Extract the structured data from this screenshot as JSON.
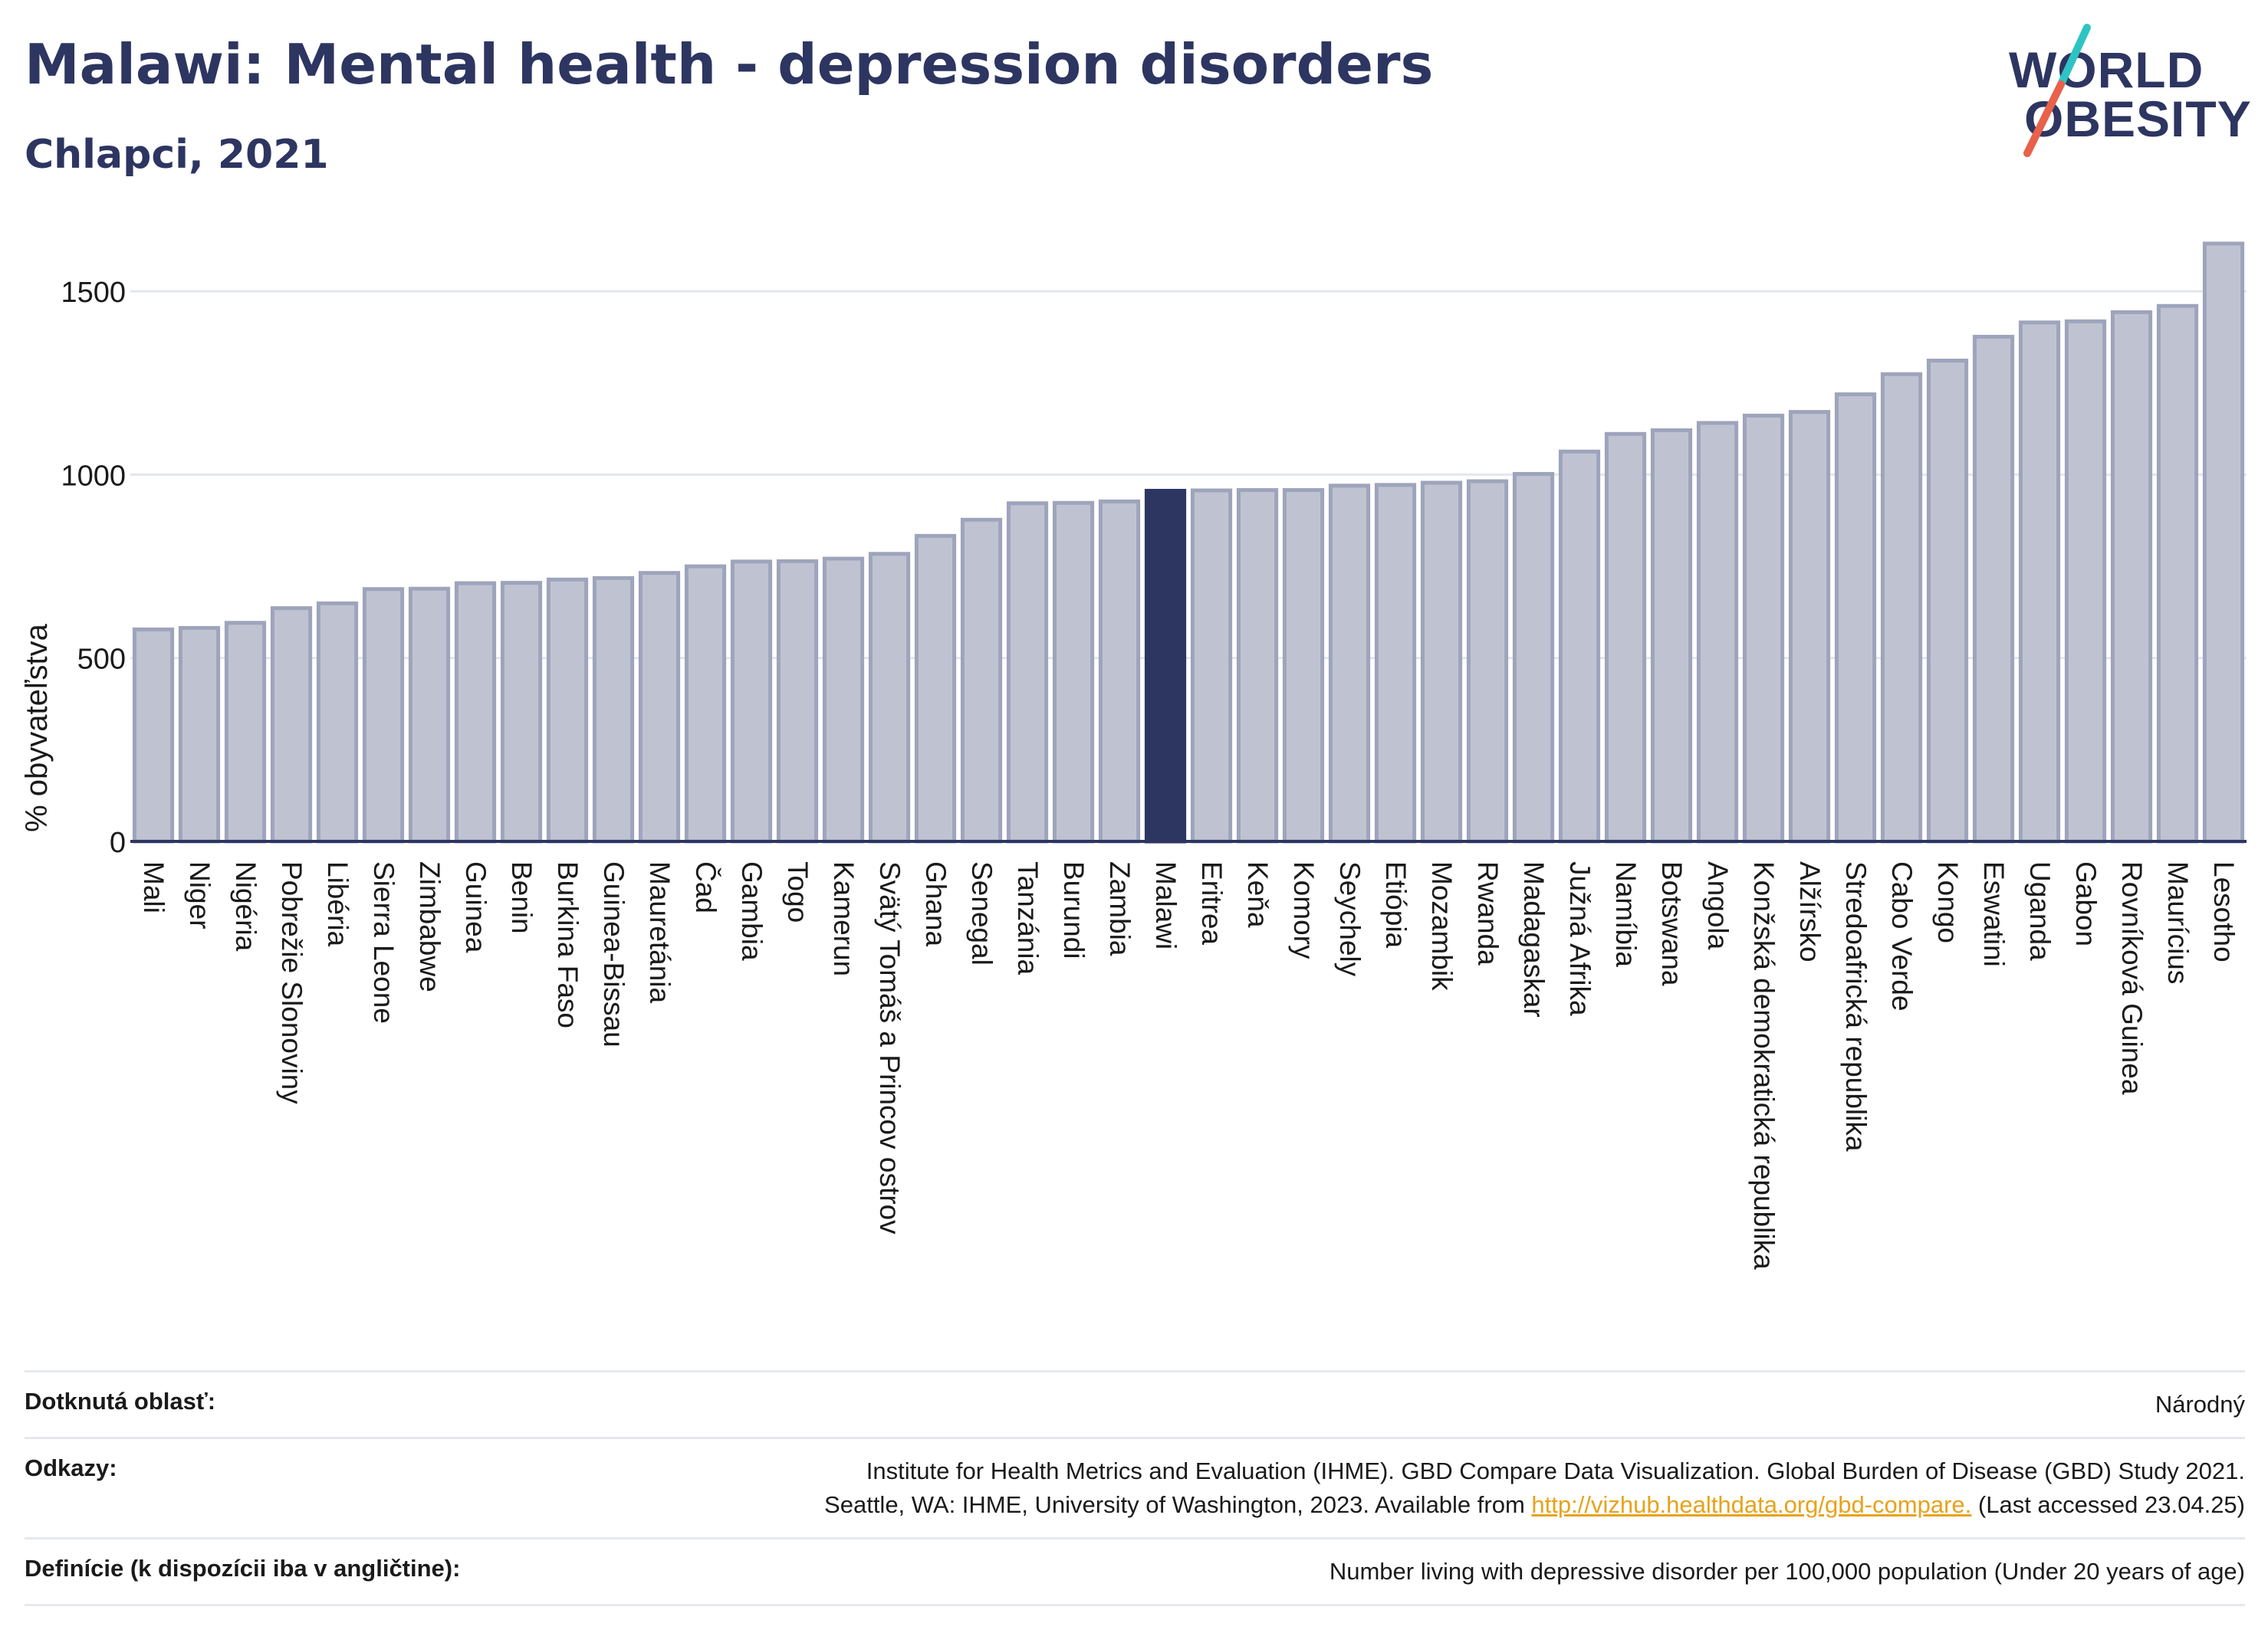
{
  "header": {
    "title": "Malawi: Mental health - depression disorders",
    "subtitle": "Chlapci, 2021"
  },
  "logo": {
    "line1": "WORLD",
    "line2": "OBESITY",
    "slash_colors": [
      "#2ec4c4",
      "#e8614a"
    ]
  },
  "colors": {
    "bar": "#bfc3d1",
    "bar_border": "#9ea4bb",
    "highlight": "#2d3561",
    "grid": "#e4e6ec",
    "axis": "#2d3561"
  },
  "chart_data": {
    "type": "bar",
    "ylabel": "% obyvateľstva",
    "ylim": [
      0,
      1650
    ],
    "yticks": [
      0,
      500,
      1000,
      1500
    ],
    "grid": true,
    "highlight": "Malawi",
    "categories": [
      "Mali",
      "Niger",
      "Nigéria",
      "Pobrežie Slonoviny",
      "Libéria",
      "Sierra Leone",
      "Zimbabwe",
      "Guinea",
      "Benin",
      "Burkina Faso",
      "Guinea-Bissau",
      "Mauretánia",
      "Čad",
      "Gambia",
      "Togo",
      "Kamerun",
      "Svätý Tomáš a Princov ostrov",
      "Ghana",
      "Senegal",
      "Tanzánia",
      "Burundi",
      "Zambia",
      "Malawi",
      "Eritrea",
      "Keňa",
      "Komory",
      "Seychely",
      "Etiópia",
      "Mozambik",
      "Rwanda",
      "Madagaskar",
      "Južná Afrika",
      "Namíbia",
      "Botswana",
      "Angola",
      "Konžská demokratická republika",
      "Alžírsko",
      "Stredoafrická republika",
      "Cabo Verde",
      "Kongo",
      "Eswatini",
      "Uganda",
      "Gabon",
      "Rovníková Guinea",
      "Maurícius",
      "Lesotho"
    ],
    "values": [
      578,
      582,
      596,
      636,
      649,
      688,
      689,
      704,
      705,
      714,
      718,
      732,
      750,
      763,
      764,
      771,
      784,
      833,
      877,
      922,
      923,
      927,
      956,
      957,
      958,
      958,
      970,
      972,
      978,
      982,
      1002,
      1063,
      1111,
      1121,
      1141,
      1161,
      1171,
      1219,
      1274,
      1311,
      1376,
      1415,
      1418,
      1443,
      1460,
      1630
    ]
  },
  "footer": {
    "rows": [
      {
        "label": "Dotknutá oblasť:",
        "lines": [
          "Národný"
        ]
      },
      {
        "label": "Odkazy:",
        "lines": [
          "Institute for Health Metrics and Evaluation (IHME). GBD Compare Data Visualization. Global Burden of Disease (GBD) Study 2021."
        ],
        "line2_pre": "Seattle, WA: IHME, University of Washington, 2023. Available from ",
        "link": "http://vizhub.healthdata.org/gbd-compare.",
        "line2_post": " (Last accessed 23.04.25)"
      },
      {
        "label": "Definície (k dispozícii iba v angličtine):",
        "lines": [
          "Number living with depressive disorder per 100,000 population (Under 20 years of age)"
        ]
      }
    ]
  }
}
